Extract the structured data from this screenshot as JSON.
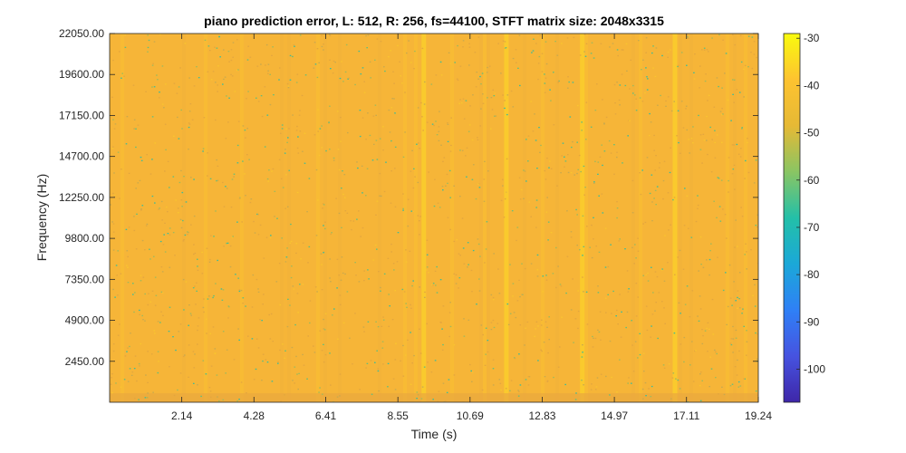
{
  "chart_data": {
    "type": "heatmap",
    "title": "piano prediction error, L: 512, R: 256, fs=44100, STFT matrix size: 2048x3315",
    "xlabel": "Time (s)",
    "ylabel": "Frequency (Hz)",
    "xlim": [
      0,
      19.24
    ],
    "ylim": [
      0,
      22050
    ],
    "x_ticks": [
      2.14,
      4.28,
      6.41,
      8.55,
      10.69,
      12.83,
      14.97,
      17.11,
      19.24
    ],
    "x_tick_labels": [
      "2.14",
      "4.28",
      "6.41",
      "8.55",
      "10.69",
      "12.83",
      "14.97",
      "17.11",
      "19.24"
    ],
    "y_ticks": [
      2450,
      4900,
      7350,
      9800,
      12250,
      14700,
      17150,
      19600,
      22050
    ],
    "y_tick_labels": [
      "2450.00",
      "4900.00",
      "7350.00",
      "9800.00",
      "12250.00",
      "14700.00",
      "17150.00",
      "19600.00",
      "22050.00"
    ],
    "colorbar": {
      "colormap": "parula",
      "clim": [
        -107,
        -29
      ],
      "ticks": [
        -100,
        -90,
        -80,
        -70,
        -60,
        -50,
        -40,
        -30
      ],
      "tick_labels": [
        "-100",
        "-90",
        "-80",
        "-70",
        "-60",
        "-50",
        "-40",
        "-30"
      ]
    },
    "dominant_value_db": -37,
    "grid": false
  }
}
